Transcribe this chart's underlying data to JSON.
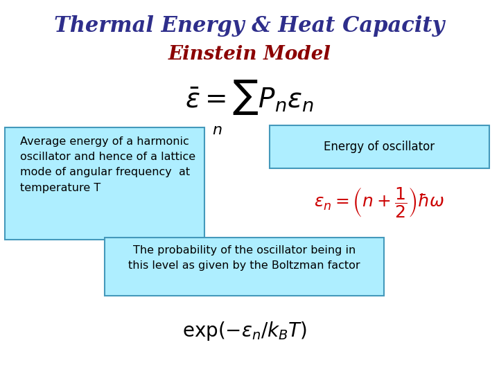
{
  "title_line1": "Thermal Energy & Heat Capacity",
  "title_line2": "Einstein Model",
  "title_color": "#2E2E8B",
  "subtitle_color": "#8B0000",
  "bg_color": "#FFFFFF",
  "box_fill_color": "#AEEEFF",
  "box_edge_color": "#4499BB",
  "left_box_text": "Average energy of a harmonic\noscillator and hence of a lattice\nmode of angular frequency  at\ntemperature T",
  "right_box_text": "Energy of oscillator",
  "bottom_box_text": "The probability of the oscillator being in\nthis level as given by the Boltzman factor",
  "text_fontsize": 11.5,
  "title_fontsize": 22,
  "subtitle_fontsize": 20,
  "formula_main_fontsize": 28,
  "formula_n_fontsize": 16,
  "formula_en_fontsize": 18,
  "formula_boltzman_fontsize": 20,
  "formula_en_color": "#CC0000"
}
